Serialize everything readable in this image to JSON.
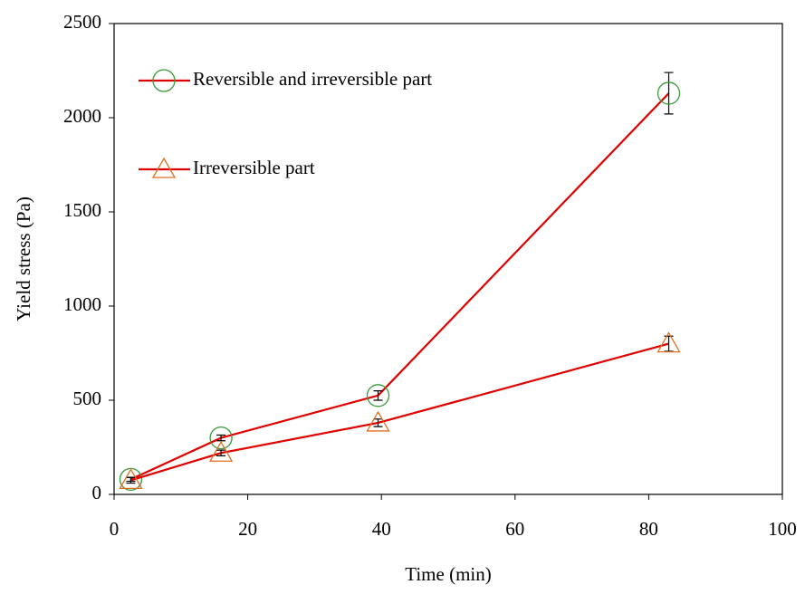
{
  "chart_data": {
    "type": "line",
    "x_label": "Time (min)",
    "y_label": "Yield stress (Pa)",
    "xlim": [
      0,
      100
    ],
    "xticks": [
      0,
      20,
      40,
      60,
      80,
      100
    ],
    "ylim": [
      0,
      2500
    ],
    "yticks": [
      0,
      500,
      1000,
      1500,
      2000,
      2500
    ],
    "grid": false,
    "legend": "upper left",
    "series": [
      {
        "name": "Reversible and irreversible part",
        "color": "#e00000",
        "marker": "circle",
        "marker_color": "#3a9a3a",
        "x": [
          2.5,
          16,
          39.5,
          83
        ],
        "values": [
          80,
          300,
          525,
          2130
        ],
        "errors": [
          10,
          15,
          25,
          110
        ]
      },
      {
        "name": "Irreversible part",
        "color": "#e00000",
        "marker": "triangle",
        "marker_color": "#e07020",
        "x": [
          2.5,
          16,
          39.5,
          83
        ],
        "values": [
          75,
          220,
          380,
          800
        ],
        "errors": [
          15,
          15,
          20,
          40
        ]
      }
    ]
  }
}
